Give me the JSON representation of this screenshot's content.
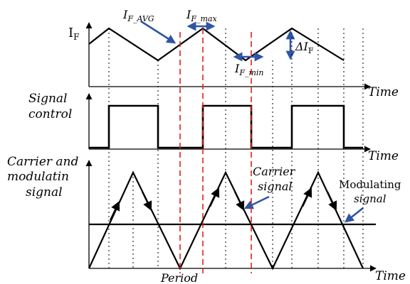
{
  "panel1": {
    "y_label_main": "I",
    "y_label_sub": "F",
    "time_label": "Time",
    "annotations": {
      "avg_main": "I",
      "avg_sub": "F_AVG",
      "max_main": "I",
      "max_sub": "F_max",
      "min_main": "I",
      "min_sub": "F_min",
      "delta_main": "ΔI",
      "delta_sub": "F"
    }
  },
  "panel2": {
    "label_line1": "Signal",
    "label_line2": "control",
    "time_label": "Time"
  },
  "panel3": {
    "label_line1": "Carrier and",
    "label_line2": "modulatin",
    "label_line3": "signal",
    "carrier_line1": "Carrier",
    "carrier_line2": "signal",
    "modulating_line1": "Modulating",
    "modulating_line2": "signal",
    "period_label": "Period",
    "time_label": "Time"
  },
  "colors": {
    "arrow_blue": "#2F55A4",
    "period_red": "#E02020",
    "line_black": "#000000"
  }
}
